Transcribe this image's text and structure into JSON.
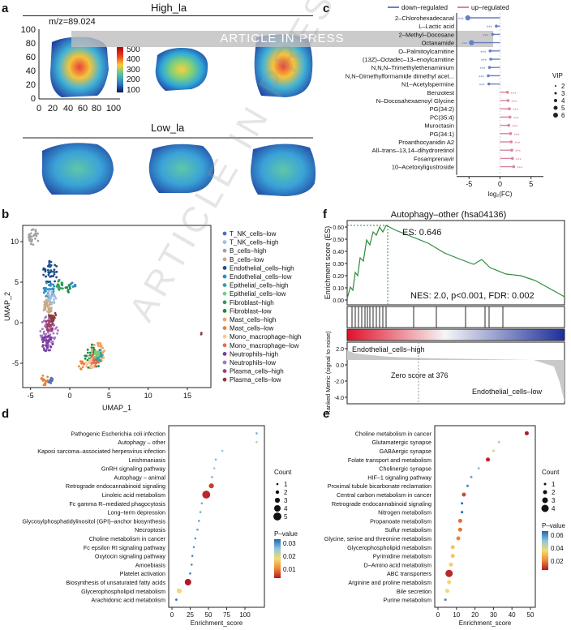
{
  "panel_labels": {
    "a": "a",
    "b": "b",
    "c": "c",
    "d": "d",
    "e": "e",
    "f": "f"
  },
  "watermark": {
    "banner": "ARTICLE IN PRESS",
    "diagonal": "ARTICLE IN PRESS"
  },
  "panel_a": {
    "title_high": "High_la",
    "title_low": "Low_la",
    "mz_label": "m/z=89.024",
    "y_ticks": [
      "100",
      "80",
      "60",
      "40",
      "20",
      "0"
    ],
    "x_ticks": [
      "0",
      "20",
      "40",
      "60",
      "80",
      "100"
    ],
    "colorbar_ticks": [
      "500",
      "400",
      "300",
      "200",
      "100"
    ]
  },
  "panel_b": {
    "xlabel": "UMAP_1",
    "ylabel": "UMAP_2",
    "x_ticks": [
      "-5",
      "0",
      "5",
      "10",
      "15"
    ],
    "y_ticks": [
      "10",
      "5",
      "0",
      "-5"
    ],
    "legend": [
      {
        "label": "T_NK_cells–low",
        "color": "#4a72b8"
      },
      {
        "label": "T_NK_cells–high",
        "color": "#9fbfe0"
      },
      {
        "label": "B_cells–high",
        "color": "#a3a0a8"
      },
      {
        "label": "B_cells–low",
        "color": "#c9a989"
      },
      {
        "label": "Endothelial_cells–high",
        "color": "#1c4f8c"
      },
      {
        "label": "Endothelial_cells–low",
        "color": "#2d8fc0"
      },
      {
        "label": "Epithelial_cells–high",
        "color": "#2fa3a3"
      },
      {
        "label": "Epithelial_cells–low",
        "color": "#7fc97f"
      },
      {
        "label": "Fibroblast–high",
        "color": "#2f9e57"
      },
      {
        "label": "Fibroblast–low",
        "color": "#1b8a3f"
      },
      {
        "label": "Mast_cells–high",
        "color": "#f2a35e"
      },
      {
        "label": "Mast_cells–low",
        "color": "#e8803c"
      },
      {
        "label": "Mono_macrophage–high",
        "color": "#f9c79a"
      },
      {
        "label": "Mono_macrophage–low",
        "color": "#e86b4c"
      },
      {
        "label": "Neutrophils–high",
        "color": "#7a3f9e"
      },
      {
        "label": "Neutrophils–low",
        "color": "#a676c2"
      },
      {
        "label": "Plasma_cells–high",
        "color": "#9e3f6e"
      },
      {
        "label": "Plasma_cells–low",
        "color": "#8c3a3a"
      }
    ]
  },
  "panel_c": {
    "legend_down": "down–regulated",
    "legend_up": "up–regulated",
    "xlabel": "log₂(FC)",
    "x_ticks": [
      "-5",
      "0",
      "5"
    ],
    "vip_title": "VIP",
    "vip_levels": [
      "2",
      "3",
      "4",
      "5",
      "6"
    ],
    "stars": "***",
    "metabolites": [
      {
        "name": "2–Chlorohexadecanal",
        "fc": -5.2
      },
      {
        "name": "L–Lactic acid",
        "fc": -0.6
      },
      {
        "name": "2–Methyl–Docosane",
        "fc": -1.2
      },
      {
        "name": "Octanamide",
        "fc": -4.6
      },
      {
        "name": "O–Palmitoylcarnitine",
        "fc": -1.6
      },
      {
        "name": "(13Z)–Octadec–13–enoylcarnitine",
        "fc": -1.5
      },
      {
        "name": "N,N,N–Trimethylethenaminium",
        "fc": -1.7
      },
      {
        "name": "N,N–Dimethylformamide dimethyl acet...",
        "fc": -1.9
      },
      {
        "name": "N1–Acetylspermine",
        "fc": -1.8
      },
      {
        "name": "Benzotest",
        "fc": 1.2
      },
      {
        "name": "N–Docosahexaenoyl Glycine",
        "fc": 1.3
      },
      {
        "name": "PG(34:2)",
        "fc": 1.5
      },
      {
        "name": "PC(35:4)",
        "fc": 1.6
      },
      {
        "name": "Muroctasin",
        "fc": 1.4
      },
      {
        "name": "PG(34:1)",
        "fc": 1.7
      },
      {
        "name": "Proanthocyanidin A2",
        "fc": 1.8
      },
      {
        "name": "All–trans–13,14–dihydroretinol",
        "fc": 1.9
      },
      {
        "name": "Fosamprenavir",
        "fc": 2.0
      },
      {
        "name": "10–Acetoxyligustroside",
        "fc": 2.2
      }
    ]
  },
  "panel_f": {
    "title": "Autophagy–other (hsa04136)",
    "es_label": "ES: 0.646",
    "nes_label": "NES: 2.0, p<0.001, FDR: 0.002",
    "ylabel_top": "Enrichment score (ES)",
    "ylabel_bottom": "Ranked Metric (signal to noise)",
    "y_ticks_top": [
      "0.60",
      "0.50",
      "0.40",
      "0.30",
      "0.20",
      "0.10",
      "0.00"
    ],
    "y_ticks_bottom": [
      "2.0",
      "0.0",
      "-2.0",
      "-4.0"
    ],
    "high_label": "Endothelial_cells–high",
    "low_label": "Endothelial_cells–low",
    "zero_label": "Zero score at 376"
  },
  "panel_d": {
    "xlabel": "Enrichment_score",
    "x_ticks": [
      "0",
      "25",
      "50",
      "75",
      "100"
    ],
    "count_title": "Count",
    "count_levels": [
      "1",
      "2",
      "3",
      "4",
      "5"
    ],
    "pvalue_title": "P–value",
    "pvalue_ticks": [
      "0.03",
      "0.02",
      "0.01"
    ],
    "pathways": [
      {
        "name": "Pathogenic Escherichia coli infection",
        "score": 116,
        "count": 1,
        "p": 0.03
      },
      {
        "name": "Autophagy – other",
        "score": 116,
        "count": 1,
        "p": 0.025
      },
      {
        "name": "Kaposi sarcoma–associated herpesvirus infection",
        "score": 69,
        "count": 1,
        "p": 0.028
      },
      {
        "name": "Leishmaniasis",
        "score": 60,
        "count": 1,
        "p": 0.029
      },
      {
        "name": "GnRH signaling pathway",
        "score": 58,
        "count": 1,
        "p": 0.027
      },
      {
        "name": "Autophagy – animal",
        "score": 55,
        "count": 1,
        "p": 0.03
      },
      {
        "name": "Retrograde endocannabinoid signaling",
        "score": 54,
        "count": 3,
        "p": 0.006
      },
      {
        "name": "Linoleic acid metabolism",
        "score": 47,
        "count": 5,
        "p": 0.004
      },
      {
        "name": "Fc gamma R–mediated phagocytosis",
        "score": 41,
        "count": 1,
        "p": 0.03
      },
      {
        "name": "Long–term depression",
        "score": 39,
        "count": 1,
        "p": 0.03
      },
      {
        "name": "Glycosylphosphatidylinositol (GPI)–anchor biosynthesis",
        "score": 37,
        "count": 1,
        "p": 0.031
      },
      {
        "name": "Necroptosis",
        "score": 35,
        "count": 1,
        "p": 0.031
      },
      {
        "name": "Choline metabolism in cancer",
        "score": 32,
        "count": 1,
        "p": 0.032
      },
      {
        "name": "Fc epsilon RI signaling pathway",
        "score": 30,
        "count": 1,
        "p": 0.032
      },
      {
        "name": "Oxytocin signaling pathway",
        "score": 28,
        "count": 1,
        "p": 0.033
      },
      {
        "name": "Amoebiasis",
        "score": 27,
        "count": 1,
        "p": 0.033
      },
      {
        "name": "Platelet activation",
        "score": 25,
        "count": 1,
        "p": 0.034
      },
      {
        "name": "Biosynthesis of unsaturated fatty acids",
        "score": 22,
        "count": 4,
        "p": 0.003
      },
      {
        "name": "Glycerophospholipid metabolism",
        "score": 10,
        "count": 3,
        "p": 0.02
      },
      {
        "name": "Arachidonic acid metabolism",
        "score": 6,
        "count": 1,
        "p": 0.036
      }
    ]
  },
  "panel_e": {
    "xlabel": "Enrichment_score",
    "x_ticks": [
      "0",
      "10",
      "20",
      "30",
      "40",
      "50"
    ],
    "count_title": "Count",
    "count_levels": [
      "1",
      "2",
      "3",
      "4"
    ],
    "pvalue_title": "P–value",
    "pvalue_ticks": [
      "0.06",
      "0.04",
      "0.02"
    ],
    "pathways": [
      {
        "name": "Choline metabolism in cancer",
        "score": 48,
        "count": 2,
        "p": 0.003
      },
      {
        "name": "Glutamatergic synapse",
        "score": 33,
        "count": 1,
        "p": 0.045
      },
      {
        "name": "GABAergic synapse",
        "score": 30,
        "count": 1,
        "p": 0.04
      },
      {
        "name": "Folate transport and metabolism",
        "score": 27,
        "count": 2,
        "p": 0.005
      },
      {
        "name": "Cholinergic synapse",
        "score": 22,
        "count": 1,
        "p": 0.05
      },
      {
        "name": "HIF–1 signaling pathway",
        "score": 18,
        "count": 1,
        "p": 0.055
      },
      {
        "name": "Proximal tubule bicarbonate reclamation",
        "score": 16,
        "count": 1,
        "p": 0.06
      },
      {
        "name": "Central carbon metabolism in cancer",
        "score": 14,
        "count": 2,
        "p": 0.01
      },
      {
        "name": "Retrograde endocannabinoid signaling",
        "score": 13,
        "count": 1,
        "p": 0.063
      },
      {
        "name": "Nitrogen metabolism",
        "score": 13,
        "count": 1,
        "p": 0.065
      },
      {
        "name": "Propanoate metabolism",
        "score": 12,
        "count": 2,
        "p": 0.015
      },
      {
        "name": "Sulfur metabolism",
        "score": 12,
        "count": 2,
        "p": 0.016
      },
      {
        "name": "Glycine, serine and threonine metabolism",
        "score": 11,
        "count": 2,
        "p": 0.018
      },
      {
        "name": "Glycerophospholipid metabolism",
        "score": 8,
        "count": 2,
        "p": 0.03
      },
      {
        "name": "Pyrimidine metabolism",
        "score": 8,
        "count": 2,
        "p": 0.03
      },
      {
        "name": "D–Amino acid metabolism",
        "score": 7,
        "count": 2,
        "p": 0.032
      },
      {
        "name": "ABC transporters",
        "score": 6,
        "count": 4,
        "p": 0.005
      },
      {
        "name": "Arginine and proline metabolism",
        "score": 6,
        "count": 2,
        "p": 0.033
      },
      {
        "name": "Bile secretion",
        "score": 5,
        "count": 2,
        "p": 0.035
      },
      {
        "name": "Purine metabolism",
        "score": 4,
        "count": 1,
        "p": 0.06
      }
    ]
  }
}
